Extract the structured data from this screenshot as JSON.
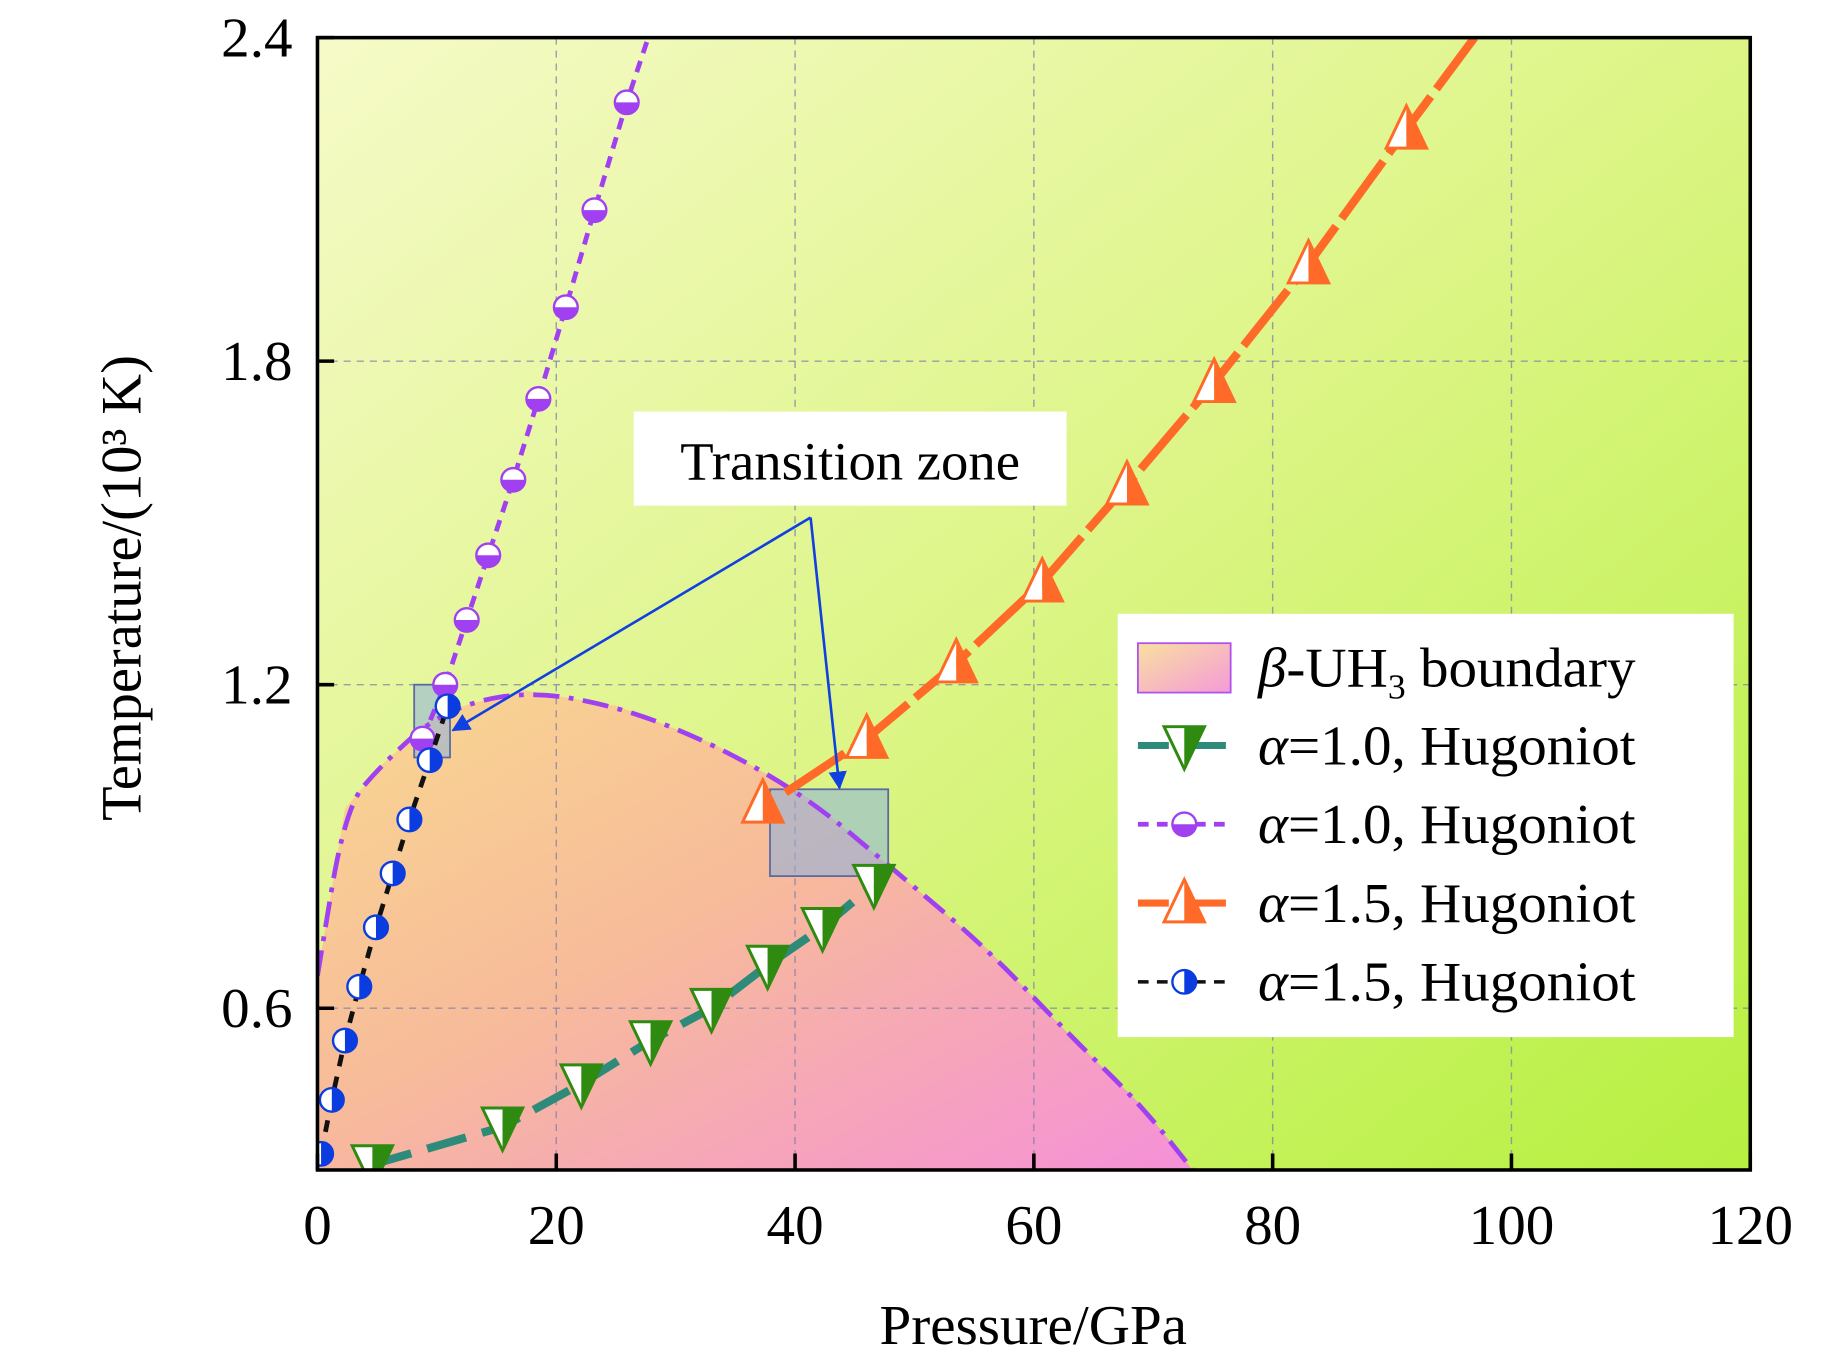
{
  "chart_data": {
    "type": "line",
    "xlabel": "Pressure/GPa",
    "ylabel": "Temperature/(10³ K)",
    "xlim": [
      0,
      120
    ],
    "ylim": [
      0.3,
      2.4
    ],
    "xticks": [
      0,
      20,
      40,
      60,
      80,
      100,
      120
    ],
    "yticks": [
      0.6,
      1.2,
      1.8,
      2.4
    ],
    "xtick_labels": [
      "0",
      "20",
      "40",
      "60",
      "80",
      "100",
      "120"
    ],
    "ytick_labels": [
      "0.6",
      "1.2",
      "1.8",
      "2.4"
    ],
    "grid": true,
    "legend_position": "right",
    "colors": {
      "green_series": "#2e8b7a",
      "green_marker": "#2f8a10",
      "purple_series": "#a040f0",
      "orange_series": "#ff6a28",
      "blue_marker": "#0a3ce0",
      "black_line": "#111111",
      "arrow": "#1040e0"
    },
    "boundary": {
      "name": "β-UH₃ boundary",
      "P": [
        0,
        2.3,
        5.3,
        10.3,
        17.2,
        25.2,
        33.2,
        41.1,
        48.1,
        56.1,
        63.0,
        69.0,
        73.3
      ],
      "T": [
        0.66,
        0.97,
        1.05,
        1.15,
        1.19,
        1.16,
        1.09,
        0.99,
        0.86,
        0.71,
        0.55,
        0.42,
        0.3
      ]
    },
    "series": [
      {
        "name": "α=1.0, Hugoniot",
        "key": "green",
        "P": [
          4.6,
          15.5,
          22.1,
          27.9,
          33.0,
          37.7,
          42.3,
          46.6
        ],
        "T": [
          0.31,
          0.38,
          0.46,
          0.54,
          0.6,
          0.68,
          0.75,
          0.83
        ]
      },
      {
        "name": "α=1.0, Hugoniot",
        "key": "purple",
        "P": [
          8.8,
          10.7,
          12.5,
          14.3,
          16.4,
          18.5,
          20.8,
          23.2,
          25.9
        ],
        "T": [
          1.1,
          1.2,
          1.32,
          1.44,
          1.58,
          1.73,
          1.9,
          2.08,
          2.28
        ],
        "line_extends_to": [
          27.7,
          2.4
        ]
      },
      {
        "name": "α=1.5, Hugoniot",
        "key": "orange",
        "P": [
          37.3,
          46.0,
          53.5,
          60.7,
          67.8,
          75.1,
          83.0,
          91.2
        ],
        "T": [
          0.98,
          1.1,
          1.24,
          1.39,
          1.57,
          1.76,
          1.98,
          2.23
        ],
        "line_extends_to": [
          96.9,
          2.4
        ]
      },
      {
        "name": "α=1.5, Hugoniot",
        "key": "blue",
        "P": [
          0.3,
          1.2,
          2.3,
          3.5,
          4.9,
          6.3,
          7.7,
          9.4,
          10.9
        ],
        "T": [
          0.33,
          0.43,
          0.54,
          0.64,
          0.75,
          0.85,
          0.95,
          1.06,
          1.16
        ]
      }
    ],
    "transition_zones": [
      {
        "P": [
          8.1,
          11.1
        ],
        "T": [
          1.065,
          1.2
        ]
      },
      {
        "P": [
          37.9,
          47.8
        ],
        "T": [
          0.845,
          1.006
        ]
      }
    ],
    "annotation": {
      "text": "Transition zone",
      "anchor": [
        41.3,
        1.51
      ]
    },
    "legend": [
      {
        "symbol": "β",
        "label": "-UH",
        "sub": "3",
        "rest": " boundary"
      },
      {
        "symbol": "α",
        "label": "=1.0, Hugoniot"
      },
      {
        "symbol": "α",
        "label": "=1.0, Hugoniot"
      },
      {
        "symbol": "α",
        "label": "=1.5, Hugoniot"
      },
      {
        "symbol": "α",
        "label": "=1.5, Hugoniot"
      }
    ]
  }
}
